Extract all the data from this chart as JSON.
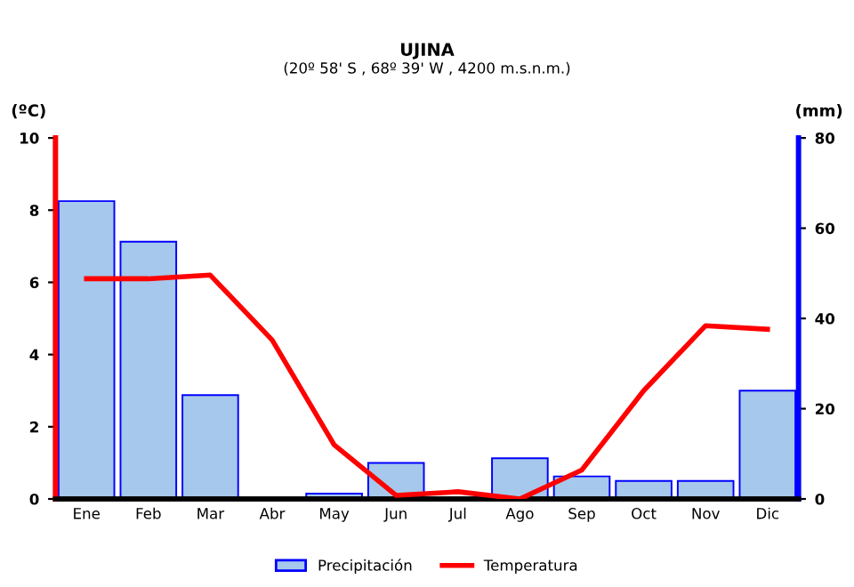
{
  "chart_data": {
    "type": "bar",
    "title": "UJINA",
    "subtitle": "(20º 58' S , 68º 39' W , 4200 m.s.n.m.)",
    "ylabel": "(ºC)",
    "y2label": "(mm)",
    "categories": [
      "Ene",
      "Feb",
      "Mar",
      "Abr",
      "May",
      "Jun",
      "Jul",
      "Ago",
      "Sep",
      "Oct",
      "Nov",
      "Dic"
    ],
    "series": [
      {
        "name": "Precipitación",
        "axis": "y2",
        "color": "#a6c8ec",
        "values": [
          66,
          57,
          23,
          0,
          1.2,
          8,
          0,
          9,
          5,
          4,
          4,
          24
        ]
      },
      {
        "name": "Temperatura",
        "type": "line",
        "axis": "y",
        "color": "#ff0000",
        "values": [
          6.1,
          6.1,
          6.2,
          4.4,
          1.5,
          0.1,
          0.2,
          0,
          0.8,
          3.0,
          4.8,
          4.7
        ]
      }
    ],
    "ylim": [
      0,
      10
    ],
    "yticks": [
      0,
      2,
      4,
      6,
      8,
      10
    ],
    "y2lim": [
      0,
      80
    ],
    "y2ticks": [
      0,
      20,
      40,
      60,
      80
    ],
    "grid": false,
    "legend": "bottom",
    "marker": "none",
    "line_style": "solid"
  }
}
